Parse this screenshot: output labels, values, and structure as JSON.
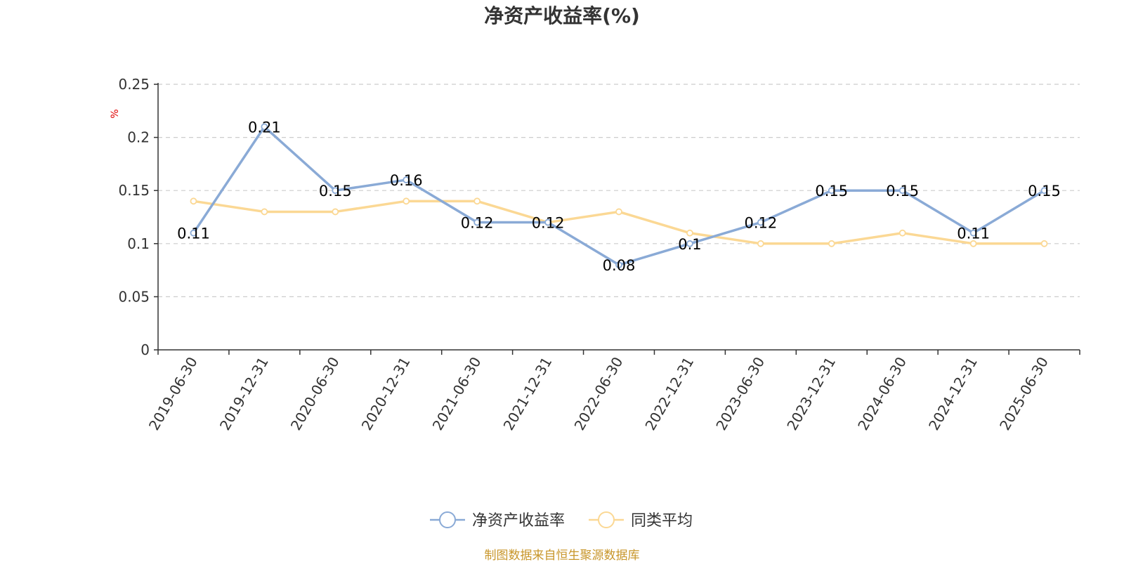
{
  "chart_data": {
    "type": "line",
    "title": "净资产收益率(%)",
    "ylabel": "%",
    "ylim": [
      0,
      0.25
    ],
    "yticks": [
      0,
      0.05,
      0.1,
      0.15,
      0.2,
      0.25
    ],
    "ytick_labels": [
      "0",
      "0.05",
      "0.1",
      "0.15",
      "0.2",
      "0.25"
    ],
    "grid": true,
    "legend_position": "bottom",
    "categories": [
      "2019-06-30",
      "2019-12-31",
      "2020-06-30",
      "2020-12-31",
      "2021-06-30",
      "2021-12-31",
      "2022-06-30",
      "2022-12-31",
      "2023-06-30",
      "2023-12-31",
      "2024-06-30",
      "2024-12-31",
      "2025-06-30"
    ],
    "series": [
      {
        "name": "净资产收益率",
        "color": "#8aaad6",
        "values": [
          0.11,
          0.21,
          0.15,
          0.16,
          0.12,
          0.12,
          0.08,
          0.1,
          0.12,
          0.15,
          0.15,
          0.11,
          0.15
        ],
        "data_labels": [
          "0.11",
          "0.21",
          "0.15",
          "0.16",
          "0.12",
          "0.12",
          "0.08",
          "0.1",
          "0.12",
          "0.15",
          "0.15",
          "0.11",
          "0.15"
        ]
      },
      {
        "name": "同类平均",
        "color": "#fbd894",
        "values": [
          0.14,
          0.13,
          0.13,
          0.14,
          0.14,
          0.12,
          0.13,
          0.11,
          0.1,
          0.1,
          0.11,
          0.1,
          0.1
        ]
      }
    ],
    "source": "制图数据来自恒生聚源数据库",
    "ylabel_color": "#e00000",
    "source_color": "#c8962a"
  }
}
